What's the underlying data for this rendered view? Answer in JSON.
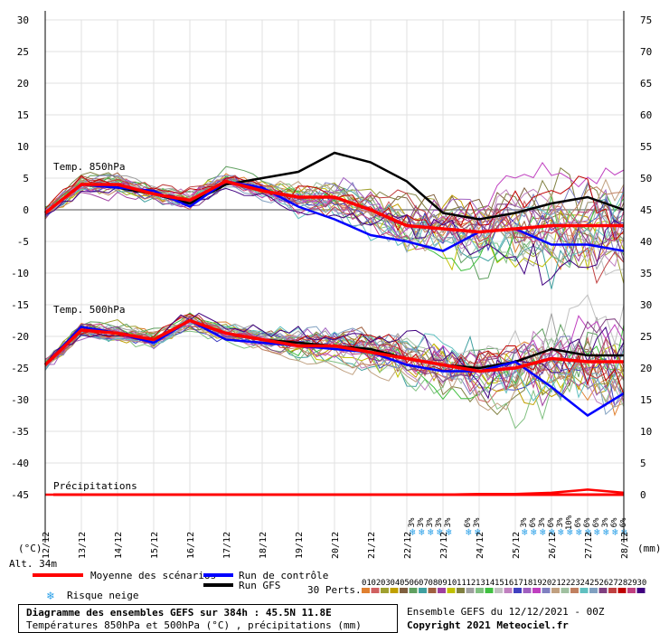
{
  "chart_data": {
    "type": "line",
    "x_dates": [
      "12/12",
      "13/12",
      "14/12",
      "15/12",
      "16/12",
      "17/12",
      "18/12",
      "19/12",
      "20/12",
      "21/12",
      "22/12",
      "23/12",
      "24/12",
      "25/12",
      "26/12",
      "27/12",
      "28/12"
    ],
    "left_axis": {
      "unit": "(°C)",
      "ylim": [
        -45,
        30
      ],
      "ticks": [
        30,
        25,
        20,
        15,
        10,
        5,
        0,
        -5,
        -10,
        -15,
        -20,
        -25,
        -30,
        -35,
        -40,
        -45
      ]
    },
    "right_axis": {
      "unit": "(mm)",
      "ylim": [
        0,
        75
      ],
      "ticks": [
        75,
        70,
        65,
        60,
        55,
        50,
        45,
        40,
        35,
        30,
        25,
        20,
        15,
        10,
        5,
        0
      ]
    },
    "panel_labels": {
      "t850": "Temp. 850hPa",
      "t500": "Temp. 500hPa",
      "precip": "Précipitations"
    },
    "x_step_hours": 24,
    "series": [
      {
        "name": "Moyenne des scénarios (850hPa)",
        "color": "#ff0000",
        "values": [
          -0.5,
          4,
          4,
          2.5,
          1.5,
          4.5,
          3,
          2,
          2,
          0,
          -2.5,
          -3,
          -3.5,
          -3,
          -2.5,
          -2.5,
          -2.5
        ]
      },
      {
        "name": "Run de contrôle (850hPa)",
        "color": "#0000ff",
        "values": [
          -0.5,
          4,
          3.5,
          3,
          0.5,
          4.5,
          3.5,
          0.5,
          -1.5,
          -4,
          -5,
          -6.5,
          -3.5,
          -3,
          -5.5,
          -5.5,
          -6.5
        ]
      },
      {
        "name": "Run GFS (850hPa)",
        "color": "#000000",
        "values": [
          -0.5,
          4,
          3.5,
          2.5,
          1,
          4,
          5,
          6,
          9,
          7.5,
          4.5,
          -0.5,
          -1.5,
          -0.5,
          1,
          2,
          0
        ]
      },
      {
        "name": "Moyenne des scénarios (500hPa)",
        "color": "#ff0000",
        "values": [
          -24.5,
          -19,
          -19.5,
          -20.5,
          -17.5,
          -19.5,
          -20.5,
          -21.5,
          -21.5,
          -22.5,
          -23.5,
          -24.5,
          -25.5,
          -25,
          -23.5,
          -24,
          -24
        ]
      },
      {
        "name": "Run de contrôle (500hPa)",
        "color": "#0000ff",
        "values": [
          -24.5,
          -18.5,
          -19.5,
          -21,
          -17.5,
          -20.5,
          -21,
          -21.5,
          -22,
          -22.5,
          -24.5,
          -25.5,
          -25.5,
          -24,
          -28,
          -32.5,
          -29
        ]
      },
      {
        "name": "Run GFS (500hPa)",
        "color": "#000000",
        "values": [
          -24.5,
          -18.5,
          -19.5,
          -20.5,
          -17.5,
          -19.5,
          -20.5,
          -21,
          -21.5,
          -22,
          -23.5,
          -24.5,
          -25,
          -24,
          -22,
          -23,
          -23
        ]
      },
      {
        "name": "Précipitations moyenne (mm)",
        "color": "#ff0000",
        "values": [
          0,
          0,
          0,
          0,
          0,
          0,
          0,
          0,
          0,
          0,
          0,
          0,
          0.1,
          0.1,
          0.3,
          0.8,
          0.3
        ]
      }
    ],
    "snow_risk": [
      {
        "label": "3%",
        "x_day": 10.2
      },
      {
        "label": "3%",
        "x_day": 10.45
      },
      {
        "label": "3%",
        "x_day": 10.7
      },
      {
        "label": "3%",
        "x_day": 10.95
      },
      {
        "label": "3%",
        "x_day": 11.2
      },
      {
        "label": "6%",
        "x_day": 11.75
      },
      {
        "label": "3%",
        "x_day": 12.0
      },
      {
        "label": "3%",
        "x_day": 13.3
      },
      {
        "label": "6%",
        "x_day": 13.55
      },
      {
        "label": "3%",
        "x_day": 13.8
      },
      {
        "label": "6%",
        "x_day": 14.05
      },
      {
        "label": "3%",
        "x_day": 14.3
      },
      {
        "label": "10%",
        "x_day": 14.55
      },
      {
        "label": "6%",
        "x_day": 14.8
      },
      {
        "label": "6%",
        "x_day": 15.05
      },
      {
        "label": "6%",
        "x_day": 15.3
      },
      {
        "label": "3%",
        "x_day": 15.55
      },
      {
        "label": "6%",
        "x_day": 15.8
      },
      {
        "label": "6%",
        "x_day": 16.05
      }
    ]
  },
  "alt_label": "Alt. 34m",
  "legend": {
    "mean": "Moyenne des scénarios",
    "control": "Run de contrôle",
    "gfs": "Run GFS",
    "snow": "Risque neige",
    "perts_label": "30 Perts.",
    "perts": [
      "01",
      "02",
      "03",
      "04",
      "05",
      "06",
      "07",
      "08",
      "09",
      "10",
      "11",
      "12",
      "13",
      "14",
      "15",
      "16",
      "17",
      "18",
      "19",
      "20",
      "21",
      "22",
      "23",
      "24",
      "25",
      "26",
      "27",
      "28",
      "29",
      "30"
    ],
    "pert_colors": [
      "#e08030",
      "#d06060",
      "#a0a030",
      "#c0a000",
      "#806040",
      "#60a060",
      "#40a0a0",
      "#a06040",
      "#a040a0",
      "#c0c000",
      "#808040",
      "#a0a0a0",
      "#80c080",
      "#40c040",
      "#c0c0c0",
      "#c080c0",
      "#4040c0",
      "#a060c0",
      "#c040c0",
      "#8080c0",
      "#c0a080",
      "#a0c0a0",
      "#c08060",
      "#60c0c0",
      "#80a0c0",
      "#804080",
      "#c04040",
      "#c00000",
      "#c04080",
      "#400080"
    ]
  },
  "footer": {
    "line1": "Diagramme des ensembles GEFS sur 384h : 45.5N 11.8E",
    "line2": "Températures 850hPa et 500hPa (°C) , précipitations (mm)",
    "run": "Ensemble GEFS du 12/12/2021 - 00Z",
    "copyright": "Copyright 2021 Meteociel.fr"
  }
}
